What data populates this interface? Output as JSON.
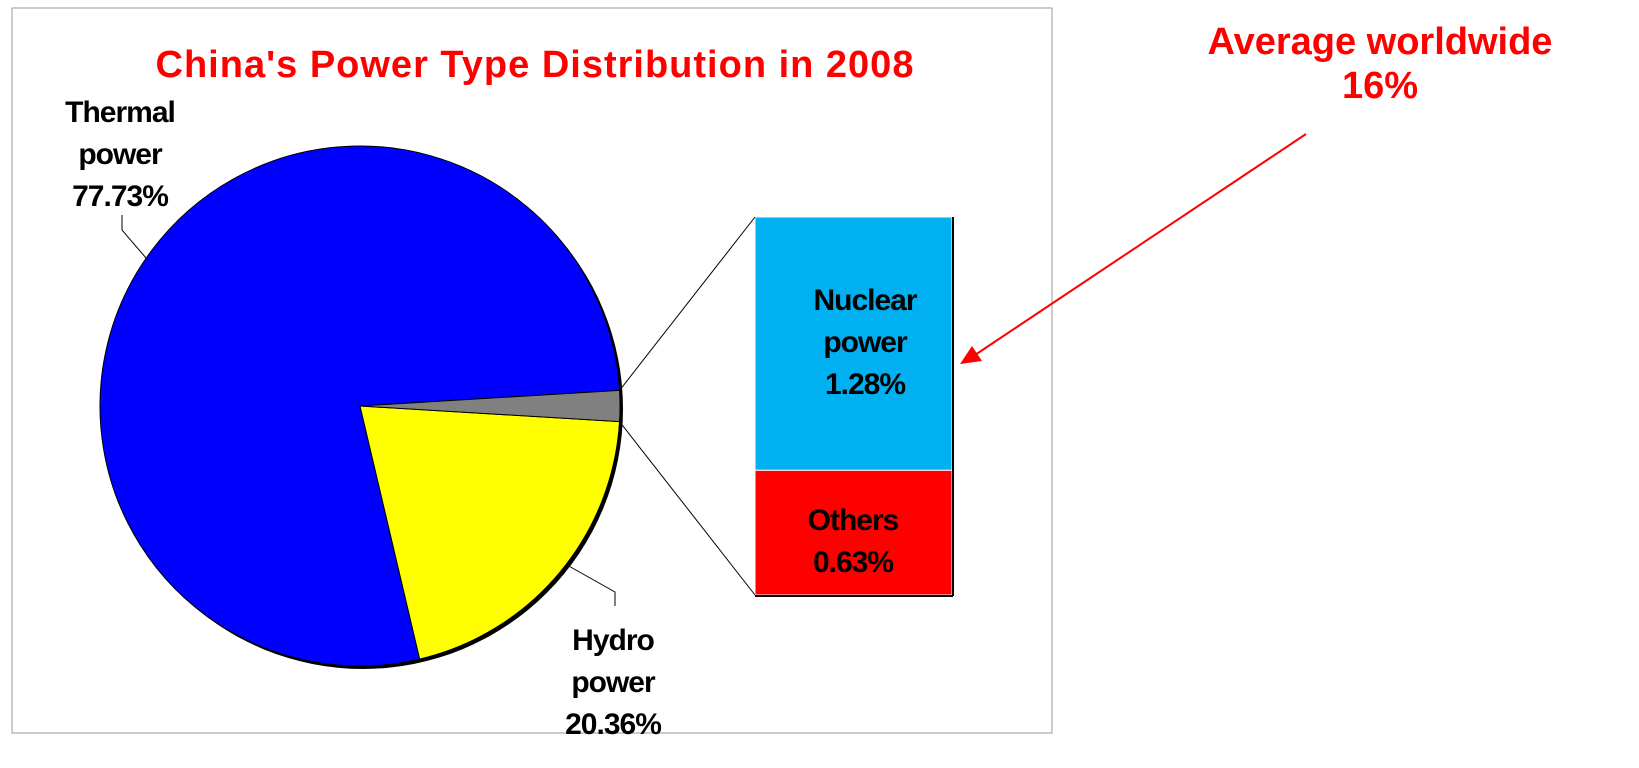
{
  "chart_data": {
    "type": "pie",
    "title": "China's Power Type Distribution in 2008",
    "categories": [
      "Thermal power",
      "Hydro power"
    ],
    "values": [
      77.73,
      20.36
    ],
    "value_labels": [
      "77.73%",
      "20.36%"
    ],
    "colors": [
      "#0000ff",
      "#ffff00"
    ],
    "other_color": "#808080",
    "bar": {
      "categories": [
        "Nuclear power",
        "Others"
      ],
      "values": [
        1.28,
        0.63
      ],
      "value_labels": [
        "1.28%",
        "0.63%"
      ],
      "colors": [
        "#00b0f0",
        "#ff0000"
      ]
    },
    "annotation": "Average worldwide 16%",
    "annotation_color": "#ff0000"
  }
}
